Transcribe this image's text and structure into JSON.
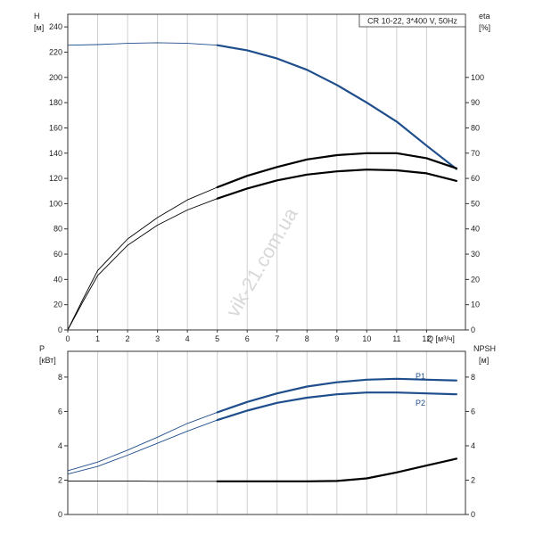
{
  "chart_data": [
    {
      "type": "line",
      "panel": "top",
      "title": "CR 10-22, 3*400 V, 50Hz",
      "left_axis": {
        "label": "H",
        "unit": "[м]",
        "ticks": [
          0,
          20,
          40,
          60,
          80,
          100,
          120,
          140,
          160,
          180,
          200,
          220,
          240
        ]
      },
      "right_axis": {
        "label": "eta",
        "unit": "[%]",
        "ticks": [
          0,
          10,
          20,
          30,
          40,
          50,
          60,
          70,
          80,
          90,
          100
        ]
      },
      "x_axis": {
        "label": "Q [м³/ч]",
        "ticks": [
          0,
          1,
          2,
          3,
          4,
          5,
          6,
          7,
          8,
          9,
          10,
          11,
          12
        ],
        "xlim": [
          0,
          13.3
        ]
      },
      "ylim_left": [
        0,
        250
      ],
      "ylim_right": [
        0,
        125
      ],
      "grid": "vertical",
      "watermark": "vik-21.com.ua",
      "series": [
        {
          "key": "head",
          "axis": "left",
          "color": "#1f4e8c",
          "thin_until": 5,
          "points": [
            [
              0,
              225.5
            ],
            [
              1,
              226
            ],
            [
              2,
              227
            ],
            [
              3,
              227.5
            ],
            [
              4,
              227
            ],
            [
              5,
              225.5
            ],
            [
              6,
              221.5
            ],
            [
              7,
              215
            ],
            [
              8,
              206
            ],
            [
              9,
              194
            ],
            [
              10,
              180
            ],
            [
              11,
              165
            ],
            [
              12,
              146
            ],
            [
              13,
              127.5
            ]
          ]
        },
        {
          "key": "eta_thin",
          "axis": "right",
          "color": "#000000",
          "thin_until": 5,
          "points": [
            [
              0,
              0
            ],
            [
              0.5,
              12
            ],
            [
              1,
              23.5
            ],
            [
              2,
              36
            ],
            [
              3,
              44.5
            ],
            [
              4,
              51.5
            ],
            [
              5,
              56.5
            ],
            [
              6,
              61
            ],
            [
              7,
              64.5
            ],
            [
              8,
              67.5
            ],
            [
              9,
              69.2
            ],
            [
              10,
              70
            ],
            [
              11,
              70
            ],
            [
              12,
              68
            ],
            [
              13,
              64
            ]
          ]
        },
        {
          "key": "eta_bold",
          "axis": "right",
          "color": "#000000",
          "thin_until": 5,
          "points": [
            [
              0,
              0
            ],
            [
              0.5,
              11
            ],
            [
              1,
              21.5
            ],
            [
              2,
              33.5
            ],
            [
              3,
              41.5
            ],
            [
              4,
              47.5
            ],
            [
              5,
              52
            ],
            [
              6,
              56
            ],
            [
              7,
              59.2
            ],
            [
              8,
              61.5
            ],
            [
              9,
              62.8
            ],
            [
              10,
              63.5
            ],
            [
              11,
              63.2
            ],
            [
              12,
              62
            ],
            [
              13,
              59
            ]
          ]
        }
      ]
    },
    {
      "type": "line",
      "panel": "bottom",
      "left_axis": {
        "label": "P",
        "unit": "[кВт]",
        "ticks": [
          0,
          2,
          4,
          6,
          8
        ]
      },
      "right_axis": {
        "label": "NPSH",
        "unit": "[м]",
        "ticks": [
          0,
          2,
          4,
          6,
          8
        ]
      },
      "x_axis": {
        "ticks": [
          0,
          1,
          2,
          3,
          4,
          5,
          6,
          7,
          8,
          9,
          10,
          11,
          12
        ],
        "xlim": [
          0,
          13.3
        ]
      },
      "ylim_left": [
        0,
        9.5
      ],
      "ylim_right": [
        0,
        9.5
      ],
      "grid": "vertical",
      "series": [
        {
          "key": "p1",
          "name": "P1",
          "axis": "left",
          "color": "#1f4e8c",
          "thin_until": 5,
          "points": [
            [
              0,
              2.55
            ],
            [
              1,
              3.05
            ],
            [
              2,
              3.75
            ],
            [
              3,
              4.5
            ],
            [
              4,
              5.3
            ],
            [
              5,
              5.95
            ],
            [
              6,
              6.55
            ],
            [
              7,
              7.05
            ],
            [
              8,
              7.45
            ],
            [
              9,
              7.7
            ],
            [
              10,
              7.85
            ],
            [
              11,
              7.9
            ],
            [
              12,
              7.85
            ],
            [
              13,
              7.8
            ]
          ]
        },
        {
          "key": "p2",
          "name": "P2",
          "axis": "left",
          "color": "#1f4e8c",
          "thin_until": 5,
          "points": [
            [
              0,
              2.35
            ],
            [
              1,
              2.8
            ],
            [
              2,
              3.45
            ],
            [
              3,
              4.15
            ],
            [
              4,
              4.85
            ],
            [
              5,
              5.5
            ],
            [
              6,
              6.05
            ],
            [
              7,
              6.5
            ],
            [
              8,
              6.8
            ],
            [
              9,
              7.0
            ],
            [
              10,
              7.1
            ],
            [
              11,
              7.1
            ],
            [
              12,
              7.05
            ],
            [
              13,
              7.0
            ]
          ]
        },
        {
          "key": "npsh",
          "axis": "right",
          "color": "#000000",
          "thin_until": 5,
          "points": [
            [
              0,
              1.95
            ],
            [
              1,
              1.95
            ],
            [
              2,
              1.95
            ],
            [
              3,
              1.93
            ],
            [
              4,
              1.93
            ],
            [
              5,
              1.93
            ],
            [
              6,
              1.93
            ],
            [
              7,
              1.93
            ],
            [
              8,
              1.93
            ],
            [
              9,
              1.95
            ],
            [
              10,
              2.1
            ],
            [
              11,
              2.45
            ],
            [
              12,
              2.85
            ],
            [
              13,
              3.25
            ]
          ]
        }
      ]
    }
  ]
}
